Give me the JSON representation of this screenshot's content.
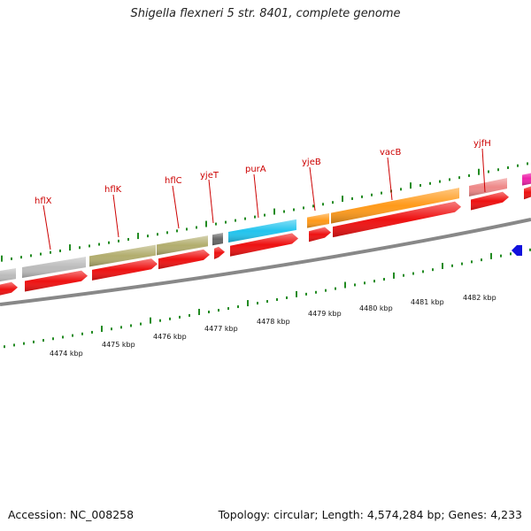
{
  "title": "Shigella flexneri 5 str. 8401, complete genome",
  "footer": {
    "accession": "Accession: NC_008258",
    "topology": "Topology: circular; Length: 4,574,284 bp; Genes: 4,233"
  },
  "gene_labels": [
    "hflX",
    "hflK",
    "hflC",
    "yjeT",
    "purA",
    "yjeB",
    "vacB",
    "yjfH"
  ],
  "kbp_labels": [
    "4474 kbp",
    "4475 kbp",
    "4476 kbp",
    "4477 kbp",
    "4478 kbp",
    "4479 kbp",
    "4480 kbp",
    "4481 kbp",
    "4482 kbp"
  ],
  "colors": {
    "cds": "#ee1111",
    "tick": "#228b22",
    "backbone": "#888888",
    "gene_label": "#cc0000",
    "grey_feature": "#bbbbbb",
    "olive_feature": "#b2ad6e",
    "dark_feature": "#666666",
    "cyan_feature": "#22c4ee",
    "orange_feature": "#ff9a1a",
    "pink_feature": "#ee8888",
    "magenta_feature": "#ee22aa",
    "blue_feature": "#1111dd"
  }
}
